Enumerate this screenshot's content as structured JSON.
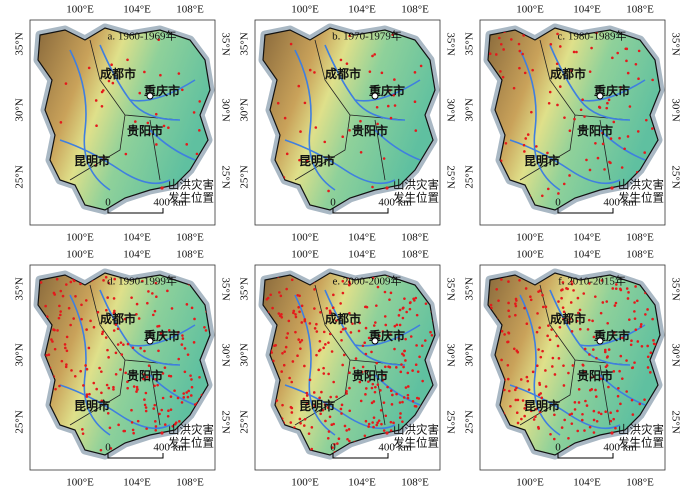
{
  "lon_labels": [
    "100°E",
    "104°E",
    "108°E"
  ],
  "lat_labels": [
    "35°N",
    "30°N",
    "25°N"
  ],
  "cities": [
    "成都市",
    "重庆市",
    "贵阳市",
    "昆明市"
  ],
  "legend": [
    "山洪灾害",
    "发生位置"
  ],
  "scale": [
    "0",
    "400 km"
  ],
  "panels": [
    {
      "title": "a. 1960-1969年"
    },
    {
      "title": "b. 1970-1979年"
    },
    {
      "title": "c. 1980-1989年"
    },
    {
      "title": "d. 1990-1999年"
    },
    {
      "title": "e. 2000-2009年"
    },
    {
      "title": "f. 2010-2015年"
    }
  ]
}
